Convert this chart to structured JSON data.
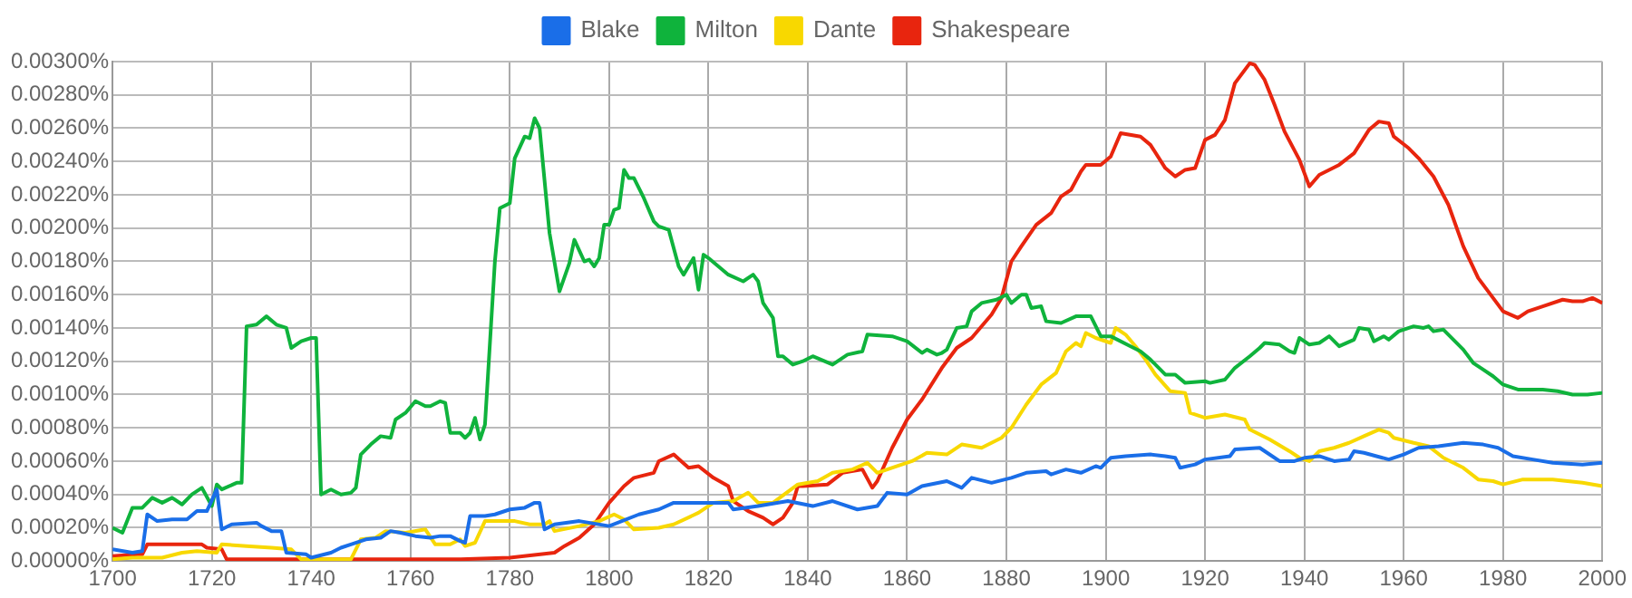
{
  "chart_data": {
    "type": "line",
    "legend": "top",
    "grid": true,
    "marker": "none",
    "line_style": "solid",
    "xlim": [
      1700,
      2000
    ],
    "xticks": [
      1700,
      1720,
      1740,
      1760,
      1780,
      1800,
      1820,
      1840,
      1860,
      1880,
      1900,
      1920,
      1940,
      1960,
      1980,
      2000
    ],
    "ylim": [
      0,
      0.003
    ],
    "yticks": [
      {
        "value": 0,
        "label": "0.00000%"
      },
      {
        "value": 0.0002,
        "label": "0.00020%"
      },
      {
        "value": 0.0004,
        "label": "0.00040%"
      },
      {
        "value": 0.0006,
        "label": "0.00060%"
      },
      {
        "value": 0.0008,
        "label": "0.00080%"
      },
      {
        "value": 0.001,
        "label": "0.00100%"
      },
      {
        "value": 0.0012,
        "label": "0.00120%"
      },
      {
        "value": 0.0014,
        "label": "0.00140%"
      },
      {
        "value": 0.0016,
        "label": "0.00160%"
      },
      {
        "value": 0.0018,
        "label": "0.00180%"
      },
      {
        "value": 0.002,
        "label": "0.00200%"
      },
      {
        "value": 0.0022,
        "label": "0.00220%"
      },
      {
        "value": 0.0024,
        "label": "0.00240%"
      },
      {
        "value": 0.0026,
        "label": "0.00260%"
      },
      {
        "value": 0.0028,
        "label": "0.00280%"
      },
      {
        "value": 0.003,
        "label": "0.00300%"
      }
    ],
    "series": [
      {
        "name": "Blake",
        "color": "#1a6ee8",
        "x": [
          1700,
          1704,
          1706,
          1707,
          1709,
          1712,
          1715,
          1717,
          1719,
          1721,
          1722,
          1724,
          1729,
          1730,
          1732,
          1734,
          1735,
          1739,
          1740,
          1744,
          1746,
          1748,
          1751,
          1754,
          1756,
          1758,
          1761,
          1764,
          1766,
          1768,
          1770,
          1771,
          1772,
          1775,
          1777,
          1780,
          1783,
          1785,
          1786,
          1787,
          1789,
          1794,
          1800,
          1806,
          1810,
          1813,
          1818,
          1824,
          1825,
          1830,
          1836,
          1841,
          1845,
          1850,
          1854,
          1856,
          1860,
          1863,
          1868,
          1871,
          1873,
          1877,
          1881,
          1884,
          1888,
          1889,
          1892,
          1895,
          1898,
          1899,
          1901,
          1904,
          1909,
          1912,
          1914,
          1915,
          1918,
          1920,
          1925,
          1926,
          1931,
          1935,
          1938,
          1940,
          1943,
          1946,
          1949,
          1950,
          1952,
          1957,
          1960,
          1963,
          1967,
          1972,
          1976,
          1979,
          1982,
          1986,
          1990,
          1996,
          2000
        ],
        "values": [
          7e-05,
          5e-05,
          6e-05,
          0.00028,
          0.00024,
          0.00025,
          0.00025,
          0.0003,
          0.0003,
          0.00043,
          0.00019,
          0.00022,
          0.00023,
          0.00021,
          0.00018,
          0.00018,
          5e-05,
          4e-05,
          2e-05,
          5e-05,
          8e-05,
          0.0001,
          0.00013,
          0.00014,
          0.00018,
          0.00017,
          0.00015,
          0.00014,
          0.00015,
          0.00015,
          0.00012,
          0.00011,
          0.00027,
          0.00027,
          0.00028,
          0.00031,
          0.00032,
          0.00035,
          0.00035,
          0.00019,
          0.00022,
          0.00024,
          0.00021,
          0.00028,
          0.00031,
          0.00035,
          0.00035,
          0.00035,
          0.00031,
          0.00033,
          0.00036,
          0.00033,
          0.00036,
          0.00031,
          0.00033,
          0.00041,
          0.0004,
          0.00045,
          0.00048,
          0.00044,
          0.0005,
          0.00047,
          0.0005,
          0.00053,
          0.00054,
          0.00052,
          0.00055,
          0.00053,
          0.00057,
          0.00056,
          0.00062,
          0.00063,
          0.00064,
          0.00063,
          0.00062,
          0.00056,
          0.00058,
          0.00061,
          0.00063,
          0.00067,
          0.00068,
          0.0006,
          0.0006,
          0.00062,
          0.00063,
          0.0006,
          0.00061,
          0.00066,
          0.00065,
          0.00061,
          0.00064,
          0.00068,
          0.00069,
          0.00071,
          0.0007,
          0.00068,
          0.00063,
          0.00061,
          0.00059,
          0.00058,
          0.00059
        ]
      },
      {
        "name": "Milton",
        "color": "#0fb33c",
        "x": [
          1700,
          1702,
          1704,
          1706,
          1708,
          1710,
          1712,
          1714,
          1716,
          1718,
          1720,
          1721,
          1722,
          1725,
          1726,
          1727,
          1729,
          1731,
          1733,
          1735,
          1736,
          1738,
          1740,
          1741,
          1742,
          1744,
          1746,
          1748,
          1749,
          1750,
          1752,
          1754,
          1756,
          1757,
          1759,
          1761,
          1763,
          1764,
          1766,
          1767,
          1768,
          1770,
          1771,
          1772,
          1773,
          1774,
          1775,
          1777,
          1778,
          1780,
          1781,
          1783,
          1784,
          1785,
          1786,
          1788,
          1790,
          1792,
          1793,
          1795,
          1796,
          1797,
          1798,
          1799,
          1800,
          1801,
          1802,
          1803,
          1804,
          1805,
          1807,
          1809,
          1810,
          1812,
          1814,
          1815,
          1817,
          1818,
          1819,
          1820,
          1822,
          1824,
          1827,
          1829,
          1830,
          1831,
          1833,
          1834,
          1835,
          1837,
          1839,
          1841,
          1845,
          1848,
          1851,
          1852,
          1857,
          1860,
          1863,
          1864,
          1866,
          1867,
          1868,
          1870,
          1872,
          1873,
          1875,
          1878,
          1880,
          1881,
          1883,
          1884,
          1885,
          1887,
          1888,
          1891,
          1894,
          1897,
          1899,
          1901,
          1905,
          1907,
          1909,
          1912,
          1914,
          1916,
          1920,
          1921,
          1924,
          1926,
          1929,
          1931,
          1932,
          1935,
          1937,
          1938,
          1939,
          1941,
          1943,
          1945,
          1947,
          1950,
          1951,
          1953,
          1954,
          1956,
          1957,
          1959,
          1962,
          1964,
          1965,
          1966,
          1968,
          1970,
          1972,
          1974,
          1976,
          1978,
          1980,
          1983,
          1988,
          1991,
          1994,
          1997,
          2000
        ],
        "values": [
          0.0002,
          0.00017,
          0.00032,
          0.00032,
          0.00038,
          0.00035,
          0.00038,
          0.00034,
          0.0004,
          0.00044,
          0.00033,
          0.00046,
          0.00043,
          0.00047,
          0.00047,
          0.00141,
          0.00142,
          0.00147,
          0.00142,
          0.0014,
          0.00128,
          0.00132,
          0.00134,
          0.00134,
          0.0004,
          0.00043,
          0.0004,
          0.00041,
          0.00044,
          0.00064,
          0.0007,
          0.00075,
          0.00074,
          0.00085,
          0.00089,
          0.00096,
          0.00093,
          0.00093,
          0.00096,
          0.00095,
          0.00077,
          0.00077,
          0.00074,
          0.00077,
          0.00086,
          0.00073,
          0.00082,
          0.0018,
          0.00212,
          0.00215,
          0.00242,
          0.00255,
          0.00254,
          0.00266,
          0.0026,
          0.00197,
          0.00162,
          0.00179,
          0.00193,
          0.0018,
          0.00181,
          0.00177,
          0.00182,
          0.00202,
          0.00202,
          0.00211,
          0.00212,
          0.00235,
          0.0023,
          0.0023,
          0.00218,
          0.00204,
          0.00201,
          0.00199,
          0.00177,
          0.00172,
          0.00182,
          0.00163,
          0.00184,
          0.00182,
          0.00177,
          0.00172,
          0.00168,
          0.00172,
          0.00168,
          0.00155,
          0.00146,
          0.00123,
          0.00123,
          0.00118,
          0.0012,
          0.00123,
          0.00118,
          0.00124,
          0.00126,
          0.00136,
          0.00135,
          0.00132,
          0.00125,
          0.00127,
          0.00124,
          0.00125,
          0.00127,
          0.0014,
          0.00141,
          0.0015,
          0.00155,
          0.00157,
          0.0016,
          0.00155,
          0.0016,
          0.0016,
          0.00152,
          0.00153,
          0.00144,
          0.00143,
          0.00147,
          0.00147,
          0.00135,
          0.00135,
          0.00129,
          0.00126,
          0.00121,
          0.00112,
          0.00112,
          0.00107,
          0.00108,
          0.00107,
          0.00109,
          0.00116,
          0.00123,
          0.00128,
          0.00131,
          0.0013,
          0.00126,
          0.00125,
          0.00134,
          0.0013,
          0.00131,
          0.00135,
          0.00129,
          0.00133,
          0.0014,
          0.00139,
          0.00132,
          0.00135,
          0.00133,
          0.00138,
          0.00141,
          0.0014,
          0.00141,
          0.00138,
          0.00139,
          0.00133,
          0.00127,
          0.00119,
          0.00115,
          0.00111,
          0.00106,
          0.00103,
          0.00103,
          0.00102,
          0.001,
          0.001,
          0.00101
        ]
      },
      {
        "name": "Dante",
        "color": "#f8d800",
        "x": [
          1700,
          1704,
          1710,
          1714,
          1717,
          1721,
          1722,
          1727,
          1732,
          1736,
          1738,
          1742,
          1748,
          1750,
          1753,
          1755,
          1759,
          1763,
          1765,
          1768,
          1770,
          1771,
          1773,
          1775,
          1777,
          1781,
          1784,
          1787,
          1788,
          1789,
          1794,
          1798,
          1801,
          1803,
          1805,
          1810,
          1813,
          1818,
          1821,
          1825,
          1828,
          1830,
          1833,
          1838,
          1842,
          1845,
          1849,
          1852,
          1854,
          1858,
          1861,
          1864,
          1868,
          1871,
          1875,
          1879,
          1881,
          1884,
          1887,
          1890,
          1892,
          1894,
          1895,
          1896,
          1898,
          1901,
          1902,
          1904,
          1906,
          1908,
          1910,
          1913,
          1916,
          1917,
          1920,
          1924,
          1928,
          1929,
          1933,
          1937,
          1939,
          1941,
          1943,
          1946,
          1949,
          1952,
          1955,
          1957,
          1958,
          1962,
          1965,
          1968,
          1972,
          1975,
          1978,
          1980,
          1984,
          1990,
          1993,
          1996,
          2000
        ],
        "values": [
          1e-05,
          2e-05,
          2e-05,
          5e-05,
          6e-05,
          5e-05,
          0.0001,
          9e-05,
          8e-05,
          7e-05,
          1e-05,
          1e-05,
          1e-05,
          0.00013,
          0.00014,
          0.00018,
          0.00017,
          0.00019,
          0.0001,
          0.0001,
          0.00013,
          9e-05,
          0.00011,
          0.00024,
          0.00024,
          0.00024,
          0.00022,
          0.00022,
          0.00024,
          0.00018,
          0.00021,
          0.00024,
          0.00028,
          0.00025,
          0.00019,
          0.0002,
          0.00022,
          0.00029,
          0.00035,
          0.00036,
          0.00041,
          0.00035,
          0.00035,
          0.00046,
          0.00048,
          0.00053,
          0.00055,
          0.00059,
          0.00053,
          0.00057,
          0.0006,
          0.00065,
          0.00064,
          0.0007,
          0.00068,
          0.00074,
          0.0008,
          0.00094,
          0.00106,
          0.00113,
          0.00126,
          0.00131,
          0.00129,
          0.00137,
          0.00134,
          0.00131,
          0.0014,
          0.00136,
          0.00129,
          0.00121,
          0.00112,
          0.00102,
          0.00101,
          0.00089,
          0.00086,
          0.00088,
          0.00085,
          0.00079,
          0.00073,
          0.00066,
          0.00062,
          0.0006,
          0.00066,
          0.00068,
          0.00071,
          0.00075,
          0.00079,
          0.00077,
          0.00074,
          0.00071,
          0.00069,
          0.00062,
          0.00056,
          0.00049,
          0.00048,
          0.00046,
          0.00049,
          0.00049,
          0.00048,
          0.00047,
          0.00045
        ]
      },
      {
        "name": "Shakespeare",
        "color": "#e8250e",
        "x": [
          1700,
          1705,
          1706,
          1707,
          1718,
          1719,
          1722,
          1723,
          1770,
          1780,
          1789,
          1791,
          1794,
          1797,
          1800,
          1803,
          1805,
          1809,
          1810,
          1813,
          1816,
          1818,
          1821,
          1824,
          1825,
          1828,
          1831,
          1833,
          1835,
          1837,
          1838,
          1839,
          1844,
          1847,
          1851,
          1853,
          1854,
          1857,
          1860,
          1863,
          1867,
          1870,
          1873,
          1877,
          1879,
          1881,
          1883,
          1886,
          1889,
          1891,
          1893,
          1895,
          1896,
          1899,
          1901,
          1903,
          1907,
          1909,
          1912,
          1914,
          1916,
          1918,
          1920,
          1922,
          1924,
          1926,
          1929,
          1930,
          1932,
          1934,
          1936,
          1939,
          1941,
          1943,
          1945,
          1947,
          1950,
          1953,
          1955,
          1957,
          1958,
          1961,
          1963,
          1966,
          1969,
          1972,
          1975,
          1978,
          1980,
          1983,
          1985,
          1988,
          1992,
          1994,
          1996,
          1998,
          2000
        ],
        "values": [
          3e-05,
          4e-05,
          4e-05,
          0.0001,
          0.0001,
          8e-05,
          7e-05,
          1e-05,
          1e-05,
          2e-05,
          5e-05,
          9e-05,
          0.00014,
          0.00022,
          0.00035,
          0.00045,
          0.0005,
          0.00053,
          0.0006,
          0.00064,
          0.00056,
          0.00057,
          0.0005,
          0.00045,
          0.00036,
          0.0003,
          0.00026,
          0.00022,
          0.00026,
          0.00035,
          0.00045,
          0.00045,
          0.00046,
          0.00053,
          0.00055,
          0.00044,
          0.00048,
          0.00068,
          0.00085,
          0.00097,
          0.00116,
          0.00128,
          0.00134,
          0.00148,
          0.00158,
          0.0018,
          0.00189,
          0.00202,
          0.00209,
          0.00219,
          0.00223,
          0.00234,
          0.00238,
          0.00238,
          0.00243,
          0.00257,
          0.00255,
          0.0025,
          0.00236,
          0.00231,
          0.00235,
          0.00236,
          0.00253,
          0.00256,
          0.00265,
          0.00287,
          0.00299,
          0.00298,
          0.00289,
          0.00274,
          0.00258,
          0.00241,
          0.00225,
          0.00232,
          0.00235,
          0.00238,
          0.00245,
          0.00259,
          0.00264,
          0.00263,
          0.00255,
          0.00248,
          0.00242,
          0.00231,
          0.00214,
          0.00189,
          0.0017,
          0.00158,
          0.0015,
          0.00146,
          0.0015,
          0.00153,
          0.00157,
          0.00156,
          0.00156,
          0.00158,
          0.00155
        ]
      }
    ]
  }
}
